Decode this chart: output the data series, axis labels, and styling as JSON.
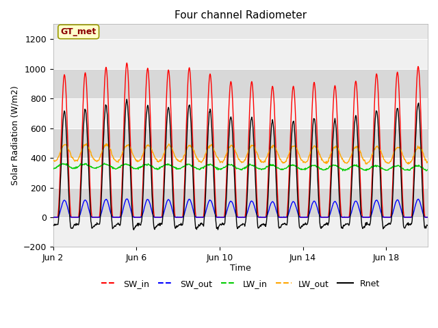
{
  "title": "Four channel Radiometer",
  "xlabel": "Time",
  "ylabel": "Solar Radiation (W/m2)",
  "ylim": [
    -200,
    1300
  ],
  "yticks": [
    -200,
    0,
    200,
    400,
    600,
    800,
    1000,
    1200
  ],
  "annotation_text": "GT_met",
  "start_day": 2,
  "n_days": 18,
  "xtick_days": [
    2,
    6,
    10,
    14,
    18
  ],
  "xtick_labels": [
    "Jun 2",
    "Jun 6",
    "Jun 10",
    "Jun 14",
    "Jun 18"
  ],
  "series": {
    "SW_in": {
      "color": "#ff0000",
      "lw": 1.0
    },
    "SW_out": {
      "color": "#0000ff",
      "lw": 1.0
    },
    "LW_in": {
      "color": "#00cc00",
      "lw": 1.0
    },
    "LW_out": {
      "color": "#ffa500",
      "lw": 1.0
    },
    "Rnet": {
      "color": "#000000",
      "lw": 1.0
    }
  },
  "legend_labels": [
    "SW_in",
    "SW_out",
    "LW_in",
    "LW_out",
    "Rnet"
  ],
  "legend_colors": [
    "#ff0000",
    "#0000ff",
    "#00cc00",
    "#ffa500",
    "#000000"
  ],
  "background_color": "#ffffff",
  "plot_bg_color": "#e8e8e8",
  "band_color_light": "#f0f0f0",
  "band_color_dark": "#d8d8d8",
  "figsize": [
    6.4,
    4.8
  ],
  "dpi": 100
}
